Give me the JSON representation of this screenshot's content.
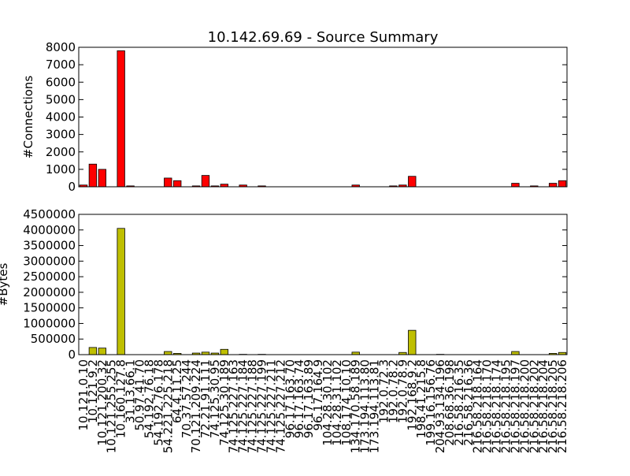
{
  "chart_data": [
    {
      "type": "bar",
      "title": "10.142.69.69 - Source Summary",
      "ylabel": "#Connections",
      "color": "#ff0000",
      "values": [
        100,
        1300,
        1000,
        0,
        7800,
        50,
        0,
        0,
        0,
        500,
        350,
        0,
        50,
        650,
        50,
        150,
        0,
        100,
        0,
        50,
        0,
        0,
        0,
        0,
        0,
        0,
        0,
        0,
        0,
        100,
        0,
        0,
        0,
        50,
        100,
        600,
        0,
        0,
        0,
        0,
        0,
        0,
        0,
        0,
        0,
        0,
        200,
        0,
        50,
        0,
        200,
        350
      ],
      "ylim": [
        0,
        8000
      ],
      "yticks": [
        0,
        1000,
        2000,
        3000,
        4000,
        5000,
        6000,
        7000,
        8000
      ]
    },
    {
      "type": "bar",
      "ylabel": "#Bytes",
      "color": "#bfbf00",
      "categories": [
        "10.121.0.10",
        "10.121.9.2",
        "10.121.200.32",
        "10.121.255.255",
        "10.160.127.8",
        "31.13.66.1",
        "50.97.41.70",
        "54.192.76.18",
        "54.192.76.178",
        "54.221.225.218",
        "64.4.11.25",
        "70.37.57.244",
        "70.121.209.224",
        "72.21.91.111",
        "74.125.30.95",
        "74.125.30.189",
        "74.125.227.163",
        "74.125.227.184",
        "74.125.227.188",
        "74.125.227.199",
        "74.125.227.211",
        "74.125.227.212",
        "96.17.163.70",
        "96.17.163.74",
        "96.17.163.89",
        "96.17.164.9",
        "104.28.30.102",
        "104.28.31.102",
        "108.174.10.10",
        "134.170.58.189",
        "173.194.113.80",
        "173.194.113.81",
        "192.0.72.3",
        "192.0.78.2",
        "192.0.78.9",
        "192.168.9.2",
        "198.41.215.8",
        "199.16.156.76",
        "204.93.134.196",
        "208.68.36.198",
        "216.58.216.35",
        "216.58.216.36",
        "216.58.218.164",
        "216.58.218.170",
        "216.58.218.174",
        "216.58.218.195",
        "216.58.218.197",
        "216.58.218.200",
        "216.58.218.202",
        "216.58.218.204",
        "216.58.218.205",
        "216.58.218.206"
      ],
      "values": [
        0,
        230000,
        210000,
        0,
        4050000,
        0,
        0,
        0,
        0,
        100000,
        40000,
        0,
        50000,
        80000,
        50000,
        170000,
        0,
        10000,
        0,
        10000,
        0,
        0,
        0,
        0,
        0,
        0,
        0,
        0,
        0,
        80000,
        0,
        0,
        0,
        0,
        70000,
        780000,
        0,
        0,
        10000,
        0,
        0,
        0,
        0,
        0,
        0,
        0,
        100000,
        0,
        0,
        0,
        40000,
        70000
      ],
      "ylim": [
        0,
        4500000
      ],
      "yticks": [
        0,
        500000,
        1000000,
        1500000,
        2000000,
        2500000,
        3000000,
        3500000,
        4000000,
        4500000
      ]
    }
  ]
}
